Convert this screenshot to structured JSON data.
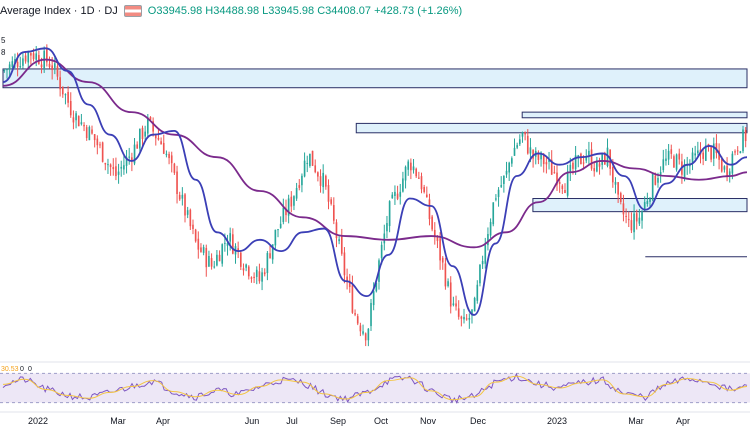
{
  "header": {
    "title": "Average Index · 1D · DJ",
    "ohlc": "O33945.98 H34488.98 L33945.98 C34408.07 +428.73 (+1.26%)"
  },
  "left_labels": [
    "5",
    "8"
  ],
  "colors": {
    "up": "#26a69a",
    "down": "#ef5350",
    "ma_fast": "#3b3fb6",
    "ma_slow": "#7b2a8c",
    "zone_fill": "#dff1fb",
    "zone_border": "#2a2f66",
    "rsi_line": "#7e57c2",
    "rsi_ma": "#f4c542",
    "rsi_band": "#ede7f6"
  },
  "icons": [
    "flag-icon"
  ],
  "chart_data": {
    "type": "candlestick",
    "title": "Average Index · 1D · DJ",
    "x_labels": [
      "2022",
      "Mar",
      "Apr",
      "Jun",
      "Jul",
      "Sep",
      "Oct",
      "Nov",
      "Dec",
      "2023",
      "Mar",
      "Apr"
    ],
    "close_path": [
      [
        0,
        36100
      ],
      [
        5,
        36600
      ],
      [
        9,
        36300
      ],
      [
        13,
        35000
      ],
      [
        17,
        34300
      ],
      [
        21,
        33300
      ],
      [
        24,
        33900
      ],
      [
        27,
        34700
      ],
      [
        30,
        34100
      ],
      [
        33,
        32800
      ],
      [
        36,
        31500
      ],
      [
        39,
        30900
      ],
      [
        42,
        31700
      ],
      [
        45,
        31000
      ],
      [
        48,
        30500
      ],
      [
        51,
        31800
      ],
      [
        54,
        32700
      ],
      [
        57,
        33900
      ],
      [
        60,
        33100
      ],
      [
        62,
        31900
      ],
      [
        64,
        30600
      ],
      [
        66,
        29500
      ],
      [
        68,
        29100
      ],
      [
        70,
        30800
      ],
      [
        72,
        32300
      ],
      [
        74,
        33000
      ],
      [
        76,
        33700
      ],
      [
        78,
        33200
      ],
      [
        80,
        32000
      ],
      [
        82,
        31000
      ],
      [
        84,
        29800
      ],
      [
        86,
        29300
      ],
      [
        88,
        29700
      ],
      [
        90,
        31500
      ],
      [
        92,
        32800
      ],
      [
        94,
        33300
      ],
      [
        95,
        33900
      ],
      [
        97,
        34400
      ],
      [
        99,
        33800
      ],
      [
        101,
        33700
      ],
      [
        103,
        33400
      ],
      [
        105,
        33100
      ],
      [
        107,
        33600
      ],
      [
        109,
        33900
      ],
      [
        111,
        33500
      ],
      [
        113,
        33900
      ],
      [
        115,
        32500
      ],
      [
        117,
        32000
      ],
      [
        119,
        32200
      ],
      [
        121,
        33000
      ],
      [
        123,
        33600
      ],
      [
        125,
        33800
      ],
      [
        127,
        33500
      ],
      [
        129,
        33700
      ],
      [
        131,
        34000
      ],
      [
        133,
        33900
      ],
      [
        135,
        33400
      ],
      [
        137,
        34100
      ],
      [
        139,
        34400
      ]
    ],
    "ma_fast": [
      [
        0,
        35800
      ],
      [
        4,
        36600
      ],
      [
        8,
        36700
      ],
      [
        12,
        36100
      ],
      [
        16,
        35200
      ],
      [
        20,
        34400
      ],
      [
        24,
        33700
      ],
      [
        28,
        34400
      ],
      [
        32,
        34500
      ],
      [
        36,
        33200
      ],
      [
        40,
        31800
      ],
      [
        44,
        31300
      ],
      [
        48,
        31600
      ],
      [
        52,
        31300
      ],
      [
        56,
        31800
      ],
      [
        60,
        31900
      ],
      [
        64,
        30500
      ],
      [
        68,
        30100
      ],
      [
        72,
        31200
      ],
      [
        76,
        32700
      ],
      [
        80,
        32500
      ],
      [
        84,
        30900
      ],
      [
        88,
        29600
      ],
      [
        92,
        31500
      ],
      [
        96,
        33300
      ],
      [
        100,
        33900
      ],
      [
        104,
        33600
      ],
      [
        108,
        33800
      ],
      [
        112,
        33900
      ],
      [
        116,
        33300
      ],
      [
        120,
        32400
      ],
      [
        124,
        33100
      ],
      [
        128,
        33600
      ],
      [
        132,
        34100
      ],
      [
        136,
        33600
      ],
      [
        139,
        33800
      ]
    ],
    "ma_slow": [
      [
        0,
        35700
      ],
      [
        8,
        36400
      ],
      [
        16,
        35800
      ],
      [
        24,
        35000
      ],
      [
        32,
        34400
      ],
      [
        40,
        33800
      ],
      [
        48,
        32900
      ],
      [
        56,
        32200
      ],
      [
        64,
        31700
      ],
      [
        72,
        31600
      ],
      [
        80,
        31700
      ],
      [
        88,
        31400
      ],
      [
        94,
        31800
      ],
      [
        100,
        32600
      ],
      [
        106,
        33400
      ],
      [
        112,
        33700
      ],
      [
        118,
        33500
      ],
      [
        124,
        33300
      ],
      [
        130,
        33200
      ],
      [
        136,
        33300
      ],
      [
        139,
        33400
      ]
    ],
    "zones": [
      {
        "x0": 0,
        "x1": 139,
        "y0": 35650,
        "y1": 36150
      },
      {
        "x0": 66,
        "x1": 139,
        "y0": 34450,
        "y1": 34700
      },
      {
        "x0": 97,
        "x1": 139,
        "y0": 34850,
        "y1": 35000
      },
      {
        "x0": 99,
        "x1": 139,
        "y0": 32350,
        "y1": 32700
      }
    ],
    "lines": [
      {
        "x0": 120,
        "x1": 139,
        "y": 31150
      }
    ],
    "ylim": [
      28400,
      37400
    ],
    "xlim": [
      0,
      139
    ],
    "rsi": {
      "ylim": [
        20,
        80
      ],
      "band": [
        30,
        70
      ],
      "ticks": [
        "30.53",
        "0",
        "0"
      ],
      "path": [
        [
          0,
          55
        ],
        [
          4,
          62
        ],
        [
          8,
          48
        ],
        [
          12,
          40
        ],
        [
          16,
          36
        ],
        [
          20,
          44
        ],
        [
          24,
          52
        ],
        [
          28,
          60
        ],
        [
          32,
          45
        ],
        [
          36,
          38
        ],
        [
          40,
          47
        ],
        [
          44,
          41
        ],
        [
          48,
          52
        ],
        [
          52,
          61
        ],
        [
          56,
          58
        ],
        [
          60,
          42
        ],
        [
          64,
          35
        ],
        [
          68,
          44
        ],
        [
          72,
          60
        ],
        [
          76,
          64
        ],
        [
          80,
          46
        ],
        [
          84,
          34
        ],
        [
          88,
          38
        ],
        [
          92,
          58
        ],
        [
          96,
          66
        ],
        [
          100,
          55
        ],
        [
          104,
          50
        ],
        [
          108,
          57
        ],
        [
          112,
          61
        ],
        [
          116,
          42
        ],
        [
          120,
          38
        ],
        [
          124,
          55
        ],
        [
          128,
          63
        ],
        [
          132,
          58
        ],
        [
          136,
          47
        ],
        [
          139,
          52
        ]
      ]
    },
    "grid": false,
    "legend": "none"
  }
}
